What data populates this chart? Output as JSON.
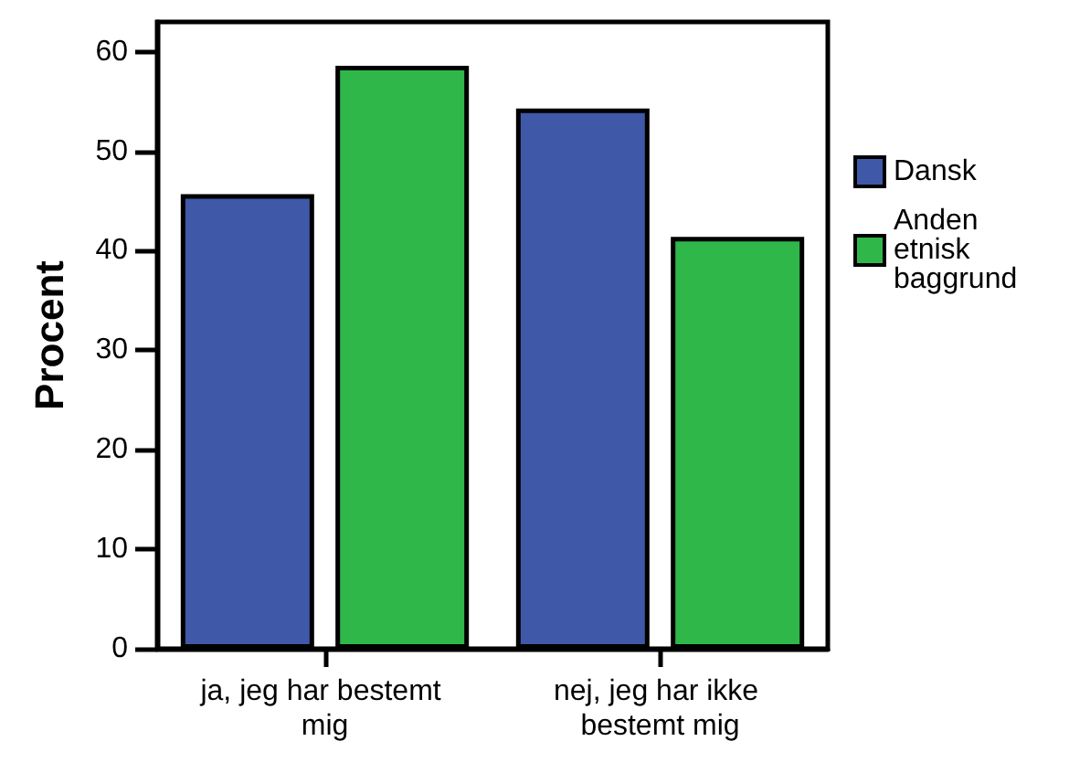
{
  "chart_data": {
    "type": "bar",
    "ylabel": "Procent",
    "categories": [
      "ja, jeg har bestemt mig",
      "nej, jeg har ikke bestemt mig"
    ],
    "series": [
      {
        "name": "Dansk",
        "color": "#3f59a8",
        "values": [
          45.7,
          54.3
        ]
      },
      {
        "name": "Anden etnisk baggrund",
        "color": "#2fb74a",
        "values": [
          58.6,
          41.4
        ]
      }
    ],
    "ylim": [
      0,
      63
    ],
    "yticks": [
      0,
      10,
      20,
      30,
      40,
      50,
      60
    ],
    "grid": false,
    "legend": "right"
  }
}
